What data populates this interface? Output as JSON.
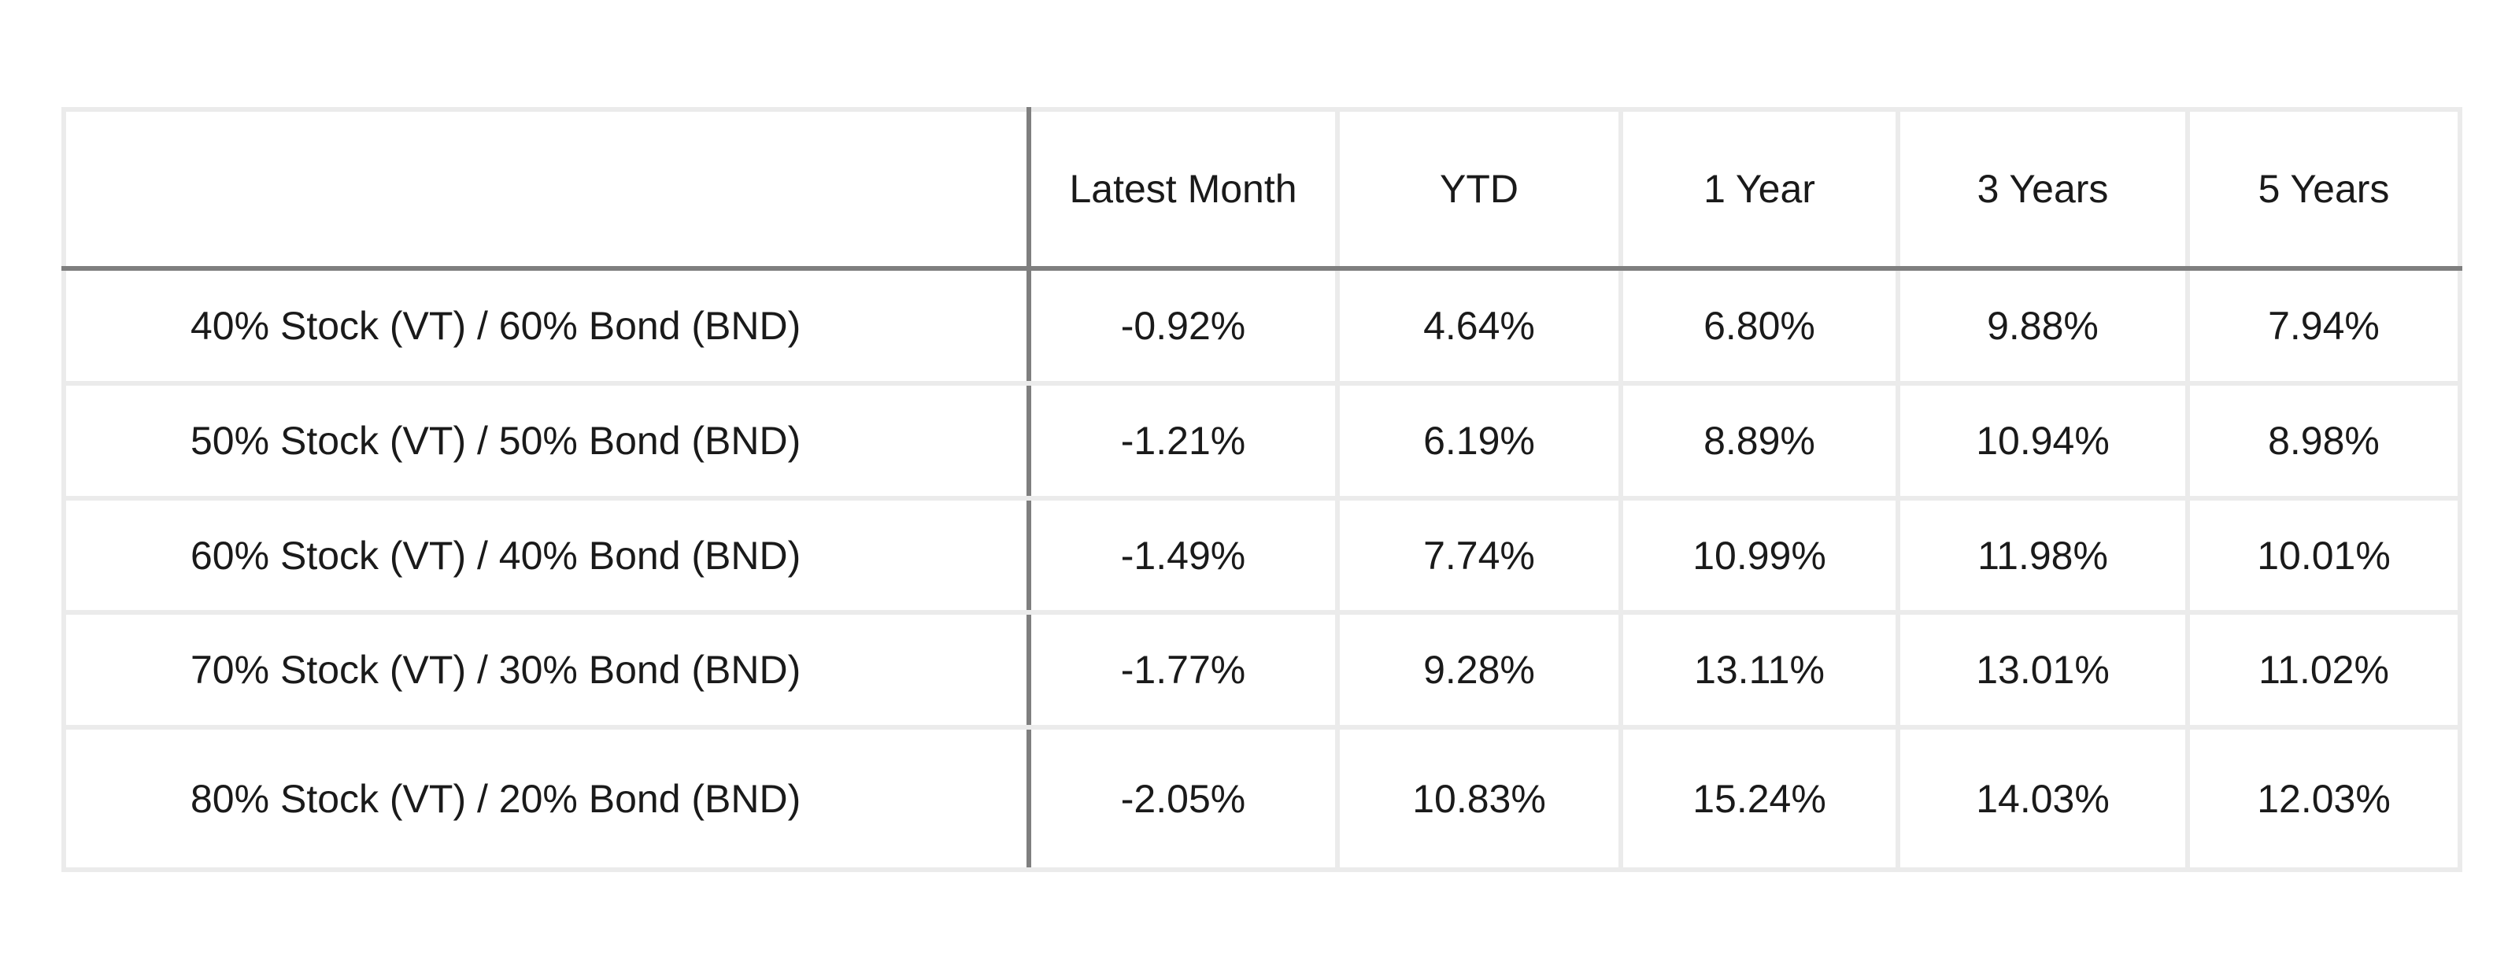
{
  "table": {
    "headers": [
      "",
      "Latest Month",
      "YTD",
      "1 Year",
      "3 Years",
      "5 Years"
    ],
    "rows": [
      {
        "label": "40% Stock (VT) / 60% Bond (BND)",
        "values": [
          "-0.92%",
          "4.64%",
          "6.80%",
          "9.88%",
          "7.94%"
        ]
      },
      {
        "label": "50% Stock (VT) / 50% Bond (BND)",
        "values": [
          "-1.21%",
          "6.19%",
          "8.89%",
          "10.94%",
          "8.98%"
        ]
      },
      {
        "label": "60% Stock (VT) / 40% Bond (BND)",
        "values": [
          "-1.49%",
          "7.74%",
          "10.99%",
          "11.98%",
          "10.01%"
        ]
      },
      {
        "label": "70% Stock (VT) / 30% Bond (BND)",
        "values": [
          "-1.77%",
          "9.28%",
          "13.11%",
          "13.01%",
          "11.02%"
        ]
      },
      {
        "label": "80% Stock (VT) / 20% Bond (BND)",
        "values": [
          "-2.05%",
          "10.83%",
          "15.24%",
          "14.03%",
          "12.03%"
        ]
      }
    ]
  }
}
